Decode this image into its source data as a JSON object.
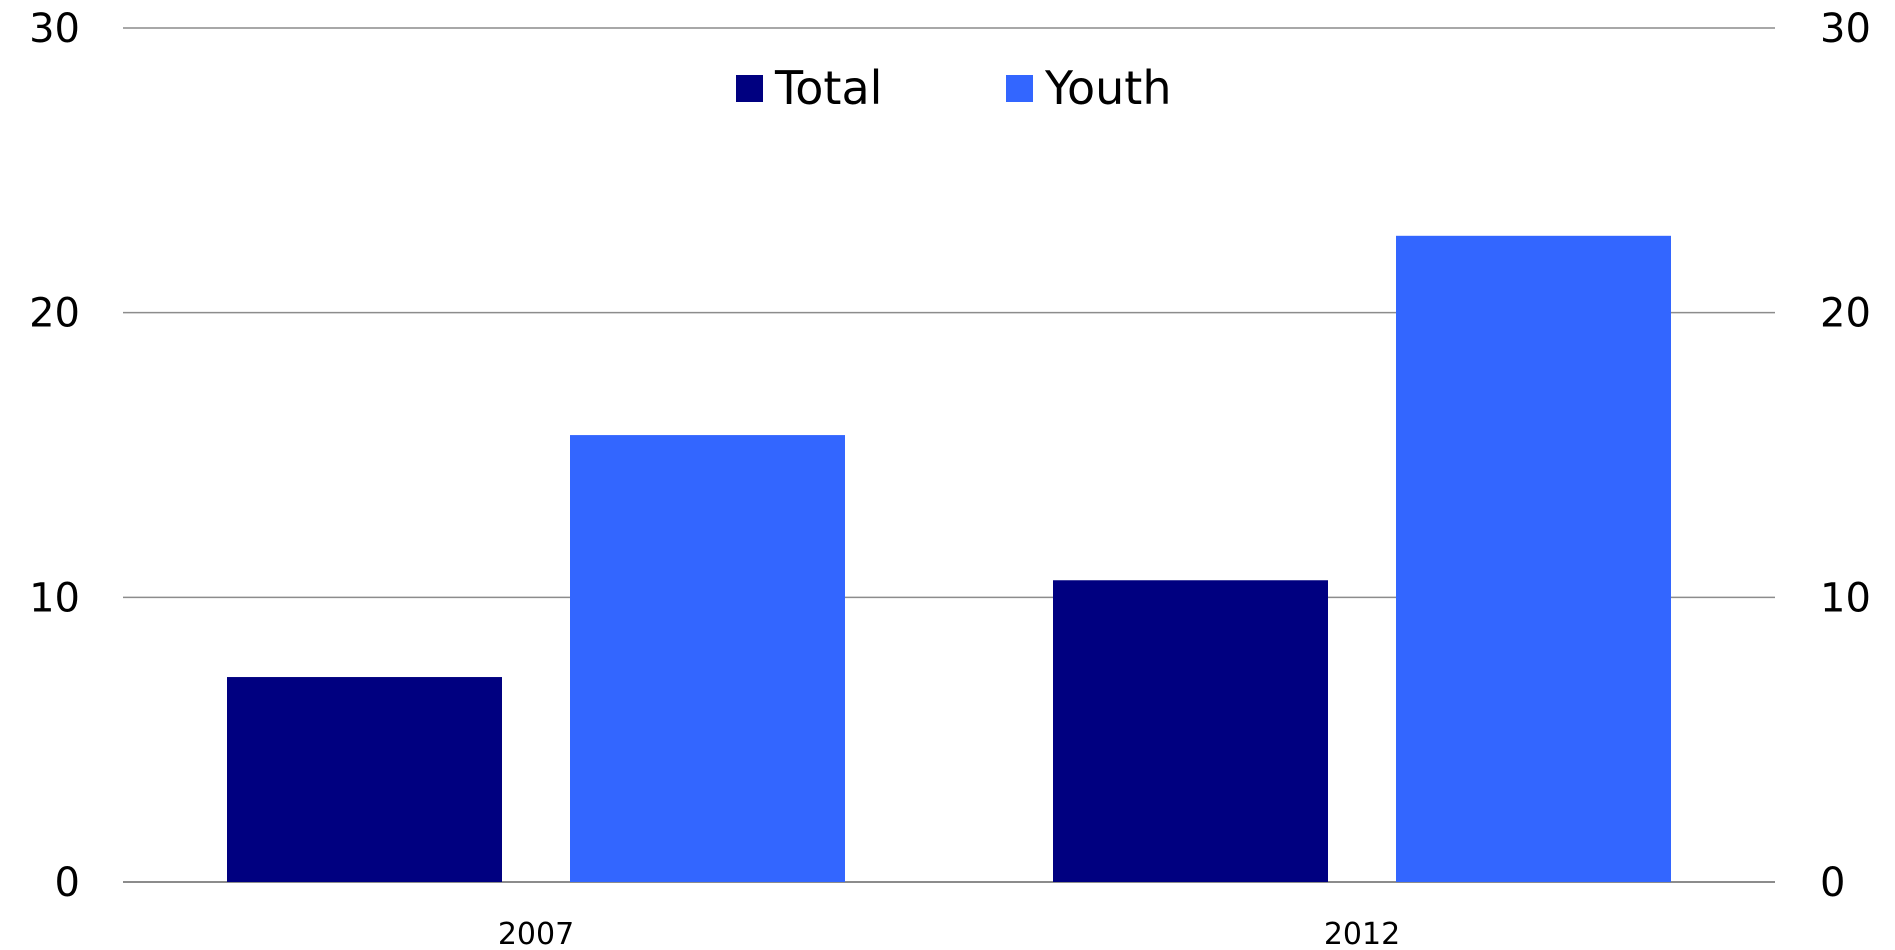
{
  "chart_data": {
    "type": "bar",
    "categories": [
      "2007",
      "2012"
    ],
    "series": [
      {
        "name": "Total",
        "values": [
          7.2,
          10.6
        ],
        "color": "#000080"
      },
      {
        "name": "Youth",
        "values": [
          15.7,
          22.7
        ],
        "color": "#3366ff"
      }
    ],
    "title": "",
    "xlabel": "",
    "ylabel": "",
    "ylim": [
      0,
      30
    ],
    "yticks": [
      "0",
      "10",
      "20",
      "30"
    ],
    "y_axis_sides": "left and right",
    "grid": true,
    "legend_position": "top-center"
  }
}
